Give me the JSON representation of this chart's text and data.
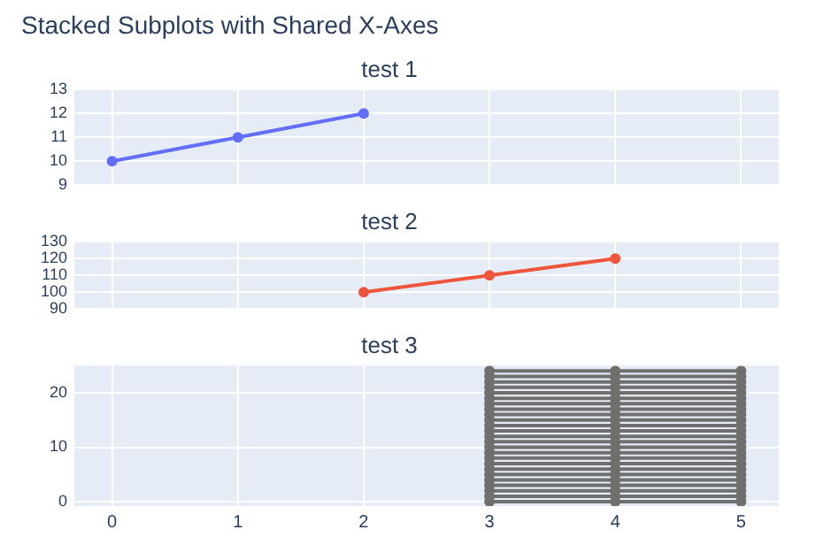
{
  "chart_data": [
    {
      "type": "line",
      "title": "Stacked Subplots with Shared X-Axes",
      "subtitle": "test 1",
      "x": [
        0,
        1,
        2
      ],
      "series": [
        {
          "color": "#636efa",
          "values": [
            10,
            11,
            12
          ]
        }
      ],
      "xlim": [
        -0.3,
        5.3
      ],
      "xticks": [
        0,
        1,
        2,
        3,
        4,
        5
      ],
      "ylim": [
        9,
        13
      ],
      "yticks": [
        9,
        10,
        11,
        12,
        13
      ],
      "grid": true,
      "marker": "circle",
      "tick_labels": "y",
      "legend": false
    },
    {
      "type": "line",
      "title": "test 2",
      "x": [
        2,
        3,
        4
      ],
      "series": [
        {
          "color": "#ef553b",
          "values": [
            100,
            110,
            120
          ]
        }
      ],
      "xlim": [
        -0.3,
        5.3
      ],
      "xticks": [
        0,
        1,
        2,
        3,
        4,
        5
      ],
      "ylim": [
        90,
        130
      ],
      "yticks": [
        90,
        100,
        110,
        120,
        130
      ],
      "grid": true,
      "marker": "circle",
      "tick_labels": "y",
      "legend": false
    },
    {
      "type": "line",
      "title": "test 3",
      "x": [
        3,
        4,
        5,
        5,
        4,
        3,
        3,
        4,
        5,
        5,
        4,
        3,
        3,
        4,
        5,
        5,
        4,
        3,
        3,
        4,
        5,
        5,
        4,
        3,
        3,
        4,
        5,
        5,
        4,
        3,
        3,
        4,
        5,
        5,
        4,
        3,
        3,
        4,
        5,
        5,
        4,
        3,
        3,
        4,
        5,
        5,
        4,
        3,
        3,
        4,
        5,
        5,
        4,
        3,
        3,
        4,
        5,
        5,
        4,
        3,
        3,
        4,
        5,
        5,
        4,
        3,
        3,
        4,
        5,
        5,
        4,
        3,
        3,
        4,
        5
      ],
      "series": [
        {
          "color": "#6f6f6f",
          "values": [
            0,
            0,
            0,
            1,
            1,
            1,
            2,
            2,
            2,
            3,
            3,
            3,
            4,
            4,
            4,
            5,
            5,
            5,
            6,
            6,
            6,
            7,
            7,
            7,
            8,
            8,
            8,
            9,
            9,
            9,
            10,
            10,
            10,
            11,
            11,
            11,
            12,
            12,
            12,
            13,
            13,
            13,
            14,
            14,
            14,
            15,
            15,
            15,
            16,
            16,
            16,
            17,
            17,
            17,
            18,
            18,
            18,
            19,
            19,
            19,
            20,
            20,
            20,
            21,
            21,
            21,
            22,
            22,
            22,
            23,
            23,
            23,
            24,
            24,
            24
          ]
        }
      ],
      "xlim": [
        -0.3,
        5.3
      ],
      "xticks": [
        0,
        1,
        2,
        3,
        4,
        5
      ],
      "ylim": [
        -0.8,
        25
      ],
      "yticks": [
        0,
        10,
        20
      ],
      "grid": true,
      "marker": "circle",
      "legend": false
    }
  ]
}
